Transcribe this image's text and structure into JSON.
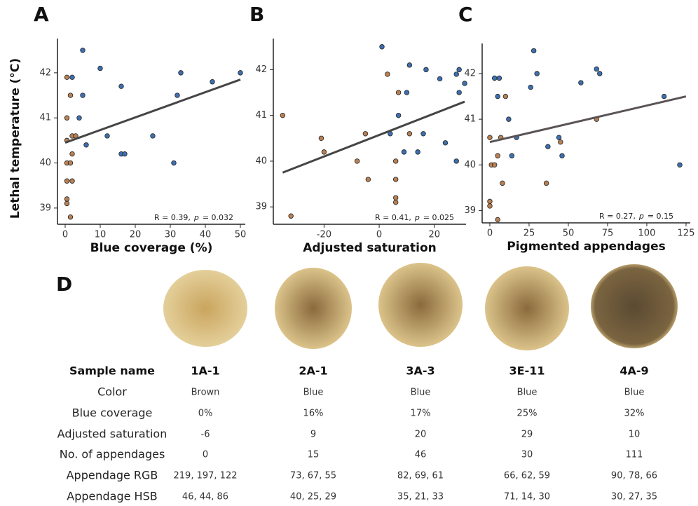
{
  "chart_data": [
    {
      "type": "scatter",
      "panel_label": "A",
      "ylabel": "Lethal temperature (°C)",
      "xlabel": "Blue coverage (%)",
      "xlim": [
        -2.2,
        51.4
      ],
      "ylim": [
        38.64,
        42.76
      ],
      "xticks": [
        0,
        10,
        20,
        30,
        40,
        50
      ],
      "yticks": [
        39,
        40,
        41,
        42
      ],
      "series": [
        {
          "color": "#3e6fb0",
          "x": [
            5,
            10,
            2,
            16,
            5,
            33,
            42,
            50,
            32,
            4,
            12,
            25,
            6,
            16,
            17,
            31
          ],
          "values": [
            42.5,
            42.1,
            41.9,
            41.7,
            41.5,
            42,
            41.8,
            42,
            41.5,
            41,
            40.6,
            40.6,
            40.4,
            40.2,
            40.2,
            40
          ]
        },
        {
          "color": "#b98053",
          "x": [
            0.5,
            1.5,
            0.5,
            2,
            3,
            0.5,
            2,
            0.5,
            1.5,
            0.5,
            2,
            0.5,
            0.5,
            1.5
          ],
          "values": [
            41.9,
            41.5,
            41,
            40.6,
            40.6,
            40.5,
            40.2,
            40,
            40,
            39.6,
            39.6,
            39.2,
            39.1,
            38.8
          ]
        }
      ],
      "fit": {
        "color": "#454545",
        "x": [
          0,
          50
        ],
        "values": [
          40.45,
          41.85
        ]
      },
      "annotation": [
        "R = 0.39,",
        "p",
        "= 0.032"
      ]
    },
    {
      "type": "scatter",
      "panel_label": "B",
      "xlabel": "Adjusted saturation",
      "xlim": [
        -38.4,
        31.5
      ],
      "ylim": [
        38.62,
        42.68
      ],
      "xticks": [
        -20,
        0,
        20
      ],
      "yticks": [
        39,
        40,
        41,
        42
      ],
      "series": [
        {
          "color": "#3e6fb0",
          "x": [
            1,
            11,
            17,
            29,
            28,
            22,
            31,
            10,
            29,
            7,
            4,
            16,
            9,
            14,
            24,
            28
          ],
          "values": [
            42.5,
            42.1,
            42,
            42,
            41.9,
            41.8,
            41.7,
            41.5,
            41.5,
            41,
            40.6,
            40.6,
            40.2,
            40.2,
            40.4,
            40
          ]
        },
        {
          "color": "#b98053",
          "x": [
            3,
            7,
            -35,
            -21,
            -5,
            11,
            -20,
            -8,
            6,
            -4,
            6,
            6,
            6,
            -32
          ],
          "values": [
            41.9,
            41.5,
            41,
            40.5,
            40.6,
            40.6,
            40.2,
            40,
            40,
            39.6,
            39.6,
            39.2,
            39.1,
            38.8
          ]
        }
      ],
      "fit": {
        "color": "#454545",
        "x": [
          -35,
          31
        ],
        "values": [
          39.75,
          41.3
        ]
      },
      "annotation": [
        "R = 0.41,",
        "p",
        "= 0.025"
      ]
    },
    {
      "type": "scatter",
      "panel_label": "C",
      "xlabel": "Pigmented appendages",
      "xlim": [
        -4.9,
        127.7
      ],
      "ylim": [
        38.73,
        42.66
      ],
      "xticks": [
        0,
        25,
        50,
        75,
        100,
        125
      ],
      "yticks": [
        39,
        40,
        41,
        42
      ],
      "series": [
        {
          "color": "#3e6fb0",
          "x": [
            28,
            68,
            70,
            30,
            3,
            6,
            58,
            26,
            5,
            111,
            12,
            17,
            44,
            37,
            14,
            46,
            121
          ],
          "values": [
            42.5,
            42.1,
            42,
            42,
            41.9,
            41.9,
            41.8,
            41.7,
            41.5,
            41.5,
            41,
            40.6,
            40.6,
            40.4,
            40.2,
            40.2,
            40
          ]
        },
        {
          "color": "#b98053",
          "x": [
            10,
            68,
            0,
            7,
            45,
            5,
            1,
            3,
            8,
            36,
            0,
            0,
            5
          ],
          "values": [
            41.5,
            41,
            40.6,
            40.6,
            40.5,
            40.2,
            40,
            40,
            39.6,
            39.6,
            39.2,
            39.1,
            38.8
          ]
        }
      ],
      "fit": {
        "color": "#5a5355",
        "x": [
          0,
          125
        ],
        "values": [
          40.5,
          41.5
        ]
      },
      "annotation": [
        "R = 0.27,",
        "p",
        "= 0.15"
      ]
    }
  ],
  "panel_d": {
    "label": "D",
    "table": {
      "header": [
        "Sample name",
        "1A-1",
        "2A-1",
        "3A-3",
        "3E-11",
        "4A-9"
      ],
      "rows": [
        [
          "Color",
          "Brown",
          "Blue",
          "Blue",
          "Blue",
          "Blue"
        ],
        [
          "Blue coverage",
          "0%",
          "16%",
          "17%",
          "25%",
          "32%"
        ],
        [
          "Adjusted saturation",
          "-6",
          "9",
          "20",
          "29",
          "10"
        ],
        [
          "No. of appendages",
          "0",
          "15",
          "46",
          "30",
          "111"
        ],
        [
          "Appendage RGB",
          "219, 197, 122",
          "73, 67, 55",
          "82, 69, 61",
          "66, 62, 59",
          "90, 78, 66"
        ],
        [
          "Appendage HSB",
          "46, 44, 86",
          "40, 25, 29",
          "35, 21, 33",
          "71, 14, 30",
          "30, 27, 35"
        ]
      ]
    }
  }
}
